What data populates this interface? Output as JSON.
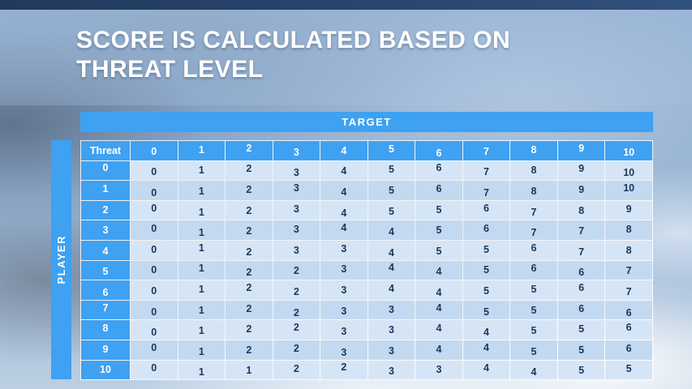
{
  "slide": {
    "title_line1": "SCORE IS CALCULATED BASED ON",
    "title_line2": "THREAT LEVEL"
  },
  "table": {
    "target_label": "TARGET",
    "player_label": "PLAYER",
    "corner_label": "Threat",
    "column_headers": [
      "0",
      "1",
      "2",
      "3",
      "4",
      "5",
      "6",
      "7",
      "8",
      "9",
      "10"
    ],
    "rows": [
      {
        "threat": "0",
        "values": [
          "0",
          "1",
          "2",
          "3",
          "4",
          "5",
          "6",
          "7",
          "8",
          "9",
          "10"
        ]
      },
      {
        "threat": "1",
        "values": [
          "0",
          "1",
          "2",
          "3",
          "4",
          "5",
          "6",
          "7",
          "8",
          "9",
          "10"
        ]
      },
      {
        "threat": "2",
        "values": [
          "0",
          "1",
          "2",
          "3",
          "4",
          "5",
          "5",
          "6",
          "7",
          "8",
          "9"
        ]
      },
      {
        "threat": "3",
        "values": [
          "0",
          "1",
          "2",
          "3",
          "4",
          "4",
          "5",
          "6",
          "7",
          "7",
          "8"
        ]
      },
      {
        "threat": "4",
        "values": [
          "0",
          "1",
          "2",
          "3",
          "3",
          "4",
          "5",
          "5",
          "6",
          "7",
          "8"
        ]
      },
      {
        "threat": "5",
        "values": [
          "0",
          "1",
          "2",
          "2",
          "3",
          "4",
          "4",
          "5",
          "6",
          "6",
          "7"
        ]
      },
      {
        "threat": "6",
        "values": [
          "0",
          "1",
          "2",
          "2",
          "3",
          "4",
          "4",
          "5",
          "5",
          "6",
          "7"
        ]
      },
      {
        "threat": "7",
        "values": [
          "0",
          "1",
          "2",
          "2",
          "3",
          "3",
          "4",
          "5",
          "5",
          "6",
          "6"
        ]
      },
      {
        "threat": "8",
        "values": [
          "0",
          "1",
          "2",
          "2",
          "3",
          "3",
          "4",
          "4",
          "5",
          "5",
          "6"
        ]
      },
      {
        "threat": "9",
        "values": [
          "0",
          "1",
          "2",
          "2",
          "3",
          "3",
          "4",
          "4",
          "5",
          "5",
          "6"
        ]
      },
      {
        "threat": "10",
        "values": [
          "0",
          "1",
          "1",
          "2",
          "2",
          "3",
          "3",
          "4",
          "4",
          "5",
          "5"
        ]
      }
    ]
  },
  "colors": {
    "accent_blue": "#3ea1f2",
    "row_light": "#d6e5f6",
    "row_dark": "#c3d9f0",
    "top_bar": "#21395c",
    "cell_text": "#17375e",
    "title_text": "#ffffff"
  }
}
